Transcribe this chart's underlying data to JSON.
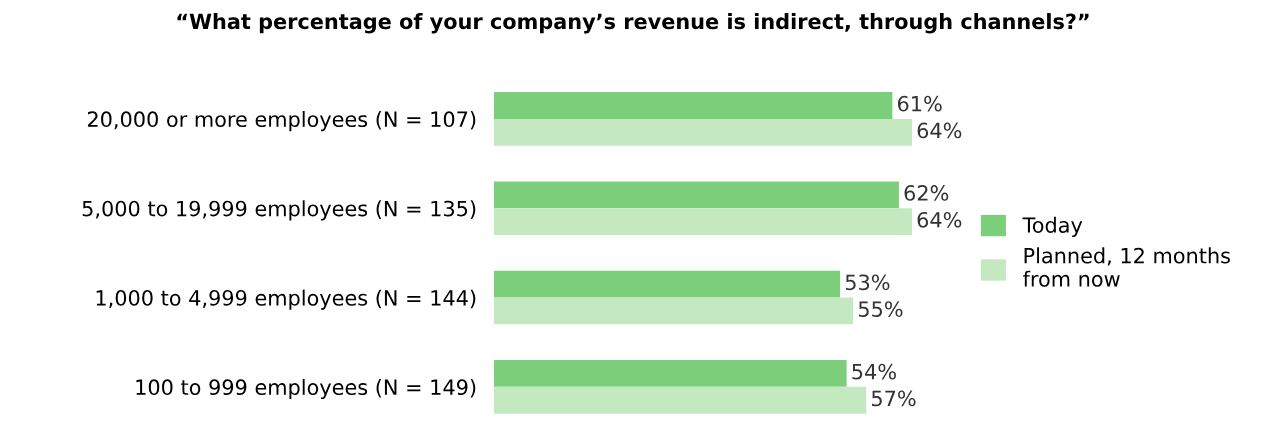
{
  "chart_data": {
    "type": "bar",
    "orientation": "horizontal",
    "title": "“What percentage of your company’s revenue is indirect, through channels?”",
    "categories": [
      "20,000 or more employees (N = 107)",
      "5,000 to 19,999 employees (N = 135)",
      "1,000 to 4,999 employees (N = 144)",
      "100 to 999 employees (N = 149)"
    ],
    "series": [
      {
        "name": "Today",
        "color": "#7ccf7a",
        "values": [
          61,
          62,
          53,
          54
        ],
        "value_labels": [
          "61%",
          "62%",
          "53%",
          "54%"
        ]
      },
      {
        "name": "Planned, 12 months\nfrom now",
        "color": "#c4e8bf",
        "values": [
          64,
          64,
          55,
          57
        ],
        "value_labels": [
          "64%",
          "64%",
          "55%",
          "57%"
        ]
      }
    ],
    "legend": "right",
    "grid": false
  }
}
